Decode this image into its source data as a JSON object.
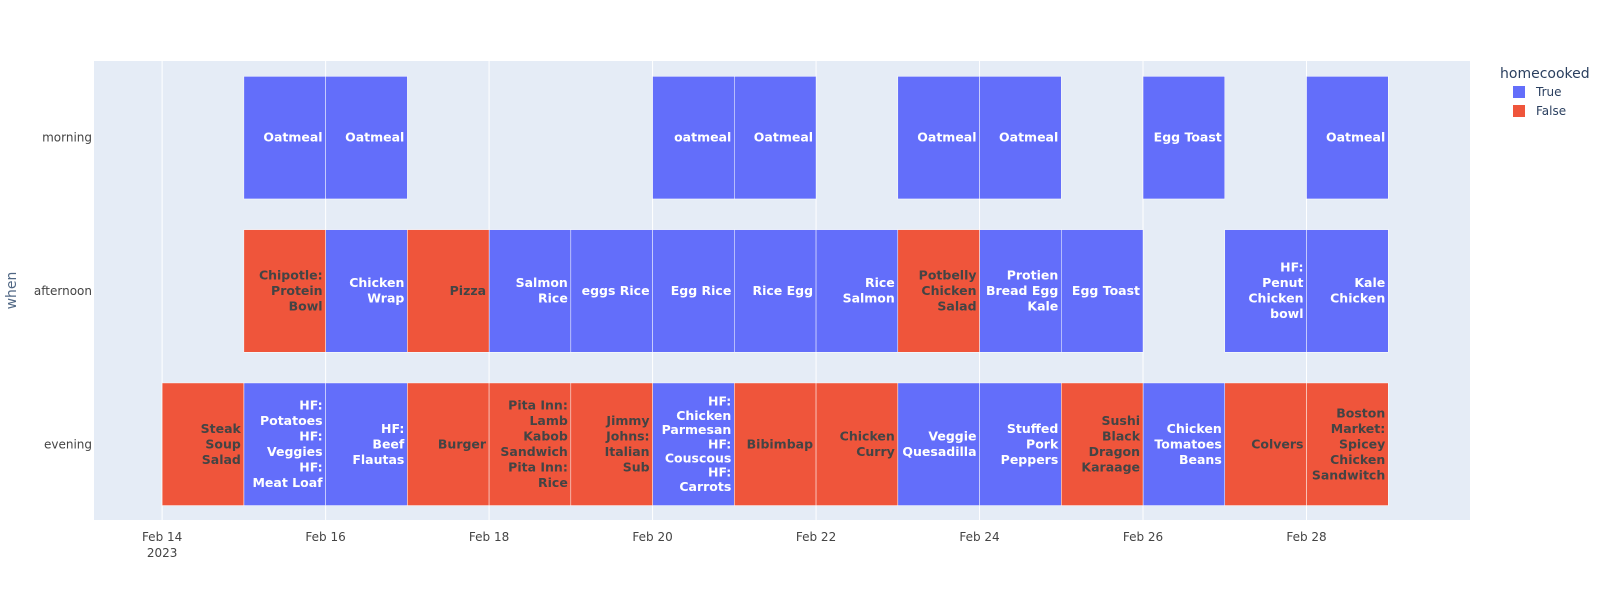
{
  "chart_data": {
    "type": "timeline",
    "title": "",
    "xlabel": "",
    "ylabel": "when",
    "categories": [
      "morning",
      "afternoon",
      "evening"
    ],
    "x_range": [
      "2023-02-13T04:00",
      "2023-03-02T00:00"
    ],
    "x_ticks": [
      {
        "date": "2023-02-14",
        "label": "Feb 14",
        "sublabel": "2023"
      },
      {
        "date": "2023-02-16",
        "label": "Feb 16",
        "sublabel": ""
      },
      {
        "date": "2023-02-18",
        "label": "Feb 18",
        "sublabel": ""
      },
      {
        "date": "2023-02-20",
        "label": "Feb 20",
        "sublabel": ""
      },
      {
        "date": "2023-02-22",
        "label": "Feb 22",
        "sublabel": ""
      },
      {
        "date": "2023-02-24",
        "label": "Feb 24",
        "sublabel": ""
      },
      {
        "date": "2023-02-26",
        "label": "Feb 26",
        "sublabel": ""
      },
      {
        "date": "2023-02-28",
        "label": "Feb 28",
        "sublabel": ""
      }
    ],
    "legend": {
      "title": "homecooked",
      "position": "top-right",
      "entries": [
        {
          "label": "True",
          "color": "#636efa"
        },
        {
          "label": "False",
          "color": "#ef553b"
        }
      ]
    },
    "colors": {
      "True": "#636efa",
      "False": "#ef553b",
      "plot_bg": "#e5ecf6",
      "grid": "#ffffff"
    },
    "series": [
      {
        "name": "True",
        "points": [
          {
            "start": "2023-02-15",
            "end": "2023-02-16",
            "when": "morning",
            "label": "Oatmeal"
          },
          {
            "start": "2023-02-16",
            "end": "2023-02-17",
            "when": "morning",
            "label": "Oatmeal"
          },
          {
            "start": "2023-02-20",
            "end": "2023-02-21",
            "when": "morning",
            "label": "oatmeal"
          },
          {
            "start": "2023-02-21",
            "end": "2023-02-22",
            "when": "morning",
            "label": "Oatmeal"
          },
          {
            "start": "2023-02-23",
            "end": "2023-02-24",
            "when": "morning",
            "label": "Oatmeal"
          },
          {
            "start": "2023-02-24",
            "end": "2023-02-25",
            "when": "morning",
            "label": "Oatmeal"
          },
          {
            "start": "2023-02-26",
            "end": "2023-02-27",
            "when": "morning",
            "label": "Egg Toast"
          },
          {
            "start": "2023-02-28",
            "end": "2023-03-01",
            "when": "morning",
            "label": "Oatmeal"
          },
          {
            "start": "2023-02-16",
            "end": "2023-02-17",
            "when": "afternoon",
            "label": "Chicken Wrap"
          },
          {
            "start": "2023-02-18",
            "end": "2023-02-19",
            "when": "afternoon",
            "label": "Salmon Rice"
          },
          {
            "start": "2023-02-19",
            "end": "2023-02-20",
            "when": "afternoon",
            "label": "eggs Rice"
          },
          {
            "start": "2023-02-20",
            "end": "2023-02-21",
            "when": "afternoon",
            "label": "Egg Rice"
          },
          {
            "start": "2023-02-21",
            "end": "2023-02-22",
            "when": "afternoon",
            "label": "Rice Egg"
          },
          {
            "start": "2023-02-22",
            "end": "2023-02-23",
            "when": "afternoon",
            "label": "Rice Salmon"
          },
          {
            "start": "2023-02-24",
            "end": "2023-02-25",
            "when": "afternoon",
            "label": "Protien Bread Egg Kale"
          },
          {
            "start": "2023-02-25",
            "end": "2023-02-26",
            "when": "afternoon",
            "label": "Egg Toast"
          },
          {
            "start": "2023-02-27",
            "end": "2023-02-28",
            "when": "afternoon",
            "label": "HF: Penut Chicken bowl"
          },
          {
            "start": "2023-02-28",
            "end": "2023-03-01",
            "when": "afternoon",
            "label": "Kale Chicken"
          },
          {
            "start": "2023-02-15",
            "end": "2023-02-16",
            "when": "evening",
            "label": "HF: Potatoes HF: Veggies HF: Meat Loaf"
          },
          {
            "start": "2023-02-16",
            "end": "2023-02-17",
            "when": "evening",
            "label": "HF: Beef Flautas"
          },
          {
            "start": "2023-02-20",
            "end": "2023-02-21",
            "when": "evening",
            "label": "HF: Chicken Parmesan HF: Couscous HF: Carrots"
          },
          {
            "start": "2023-02-23",
            "end": "2023-02-24",
            "when": "evening",
            "label": "Veggie Quesadilla"
          },
          {
            "start": "2023-02-24",
            "end": "2023-02-25",
            "when": "evening",
            "label": "Stuffed Pork Peppers"
          },
          {
            "start": "2023-02-26",
            "end": "2023-02-27",
            "when": "evening",
            "label": "Chicken Tomatoes Beans"
          }
        ]
      },
      {
        "name": "False",
        "points": [
          {
            "start": "2023-02-15",
            "end": "2023-02-16",
            "when": "afternoon",
            "label": "Chipotle: Protein Bowl"
          },
          {
            "start": "2023-02-17",
            "end": "2023-02-18",
            "when": "afternoon",
            "label": "Pizza"
          },
          {
            "start": "2023-02-23",
            "end": "2023-02-24",
            "when": "afternoon",
            "label": "Potbelly Chicken Salad"
          },
          {
            "start": "2023-02-14",
            "end": "2023-02-15",
            "when": "evening",
            "label": "Steak Soup Salad"
          },
          {
            "start": "2023-02-17",
            "end": "2023-02-18",
            "when": "evening",
            "label": "Burger"
          },
          {
            "start": "2023-02-18",
            "end": "2023-02-19",
            "when": "evening",
            "label": "Pita Inn: Lamb Kabob Sandwich Pita Inn: Rice"
          },
          {
            "start": "2023-02-19",
            "end": "2023-02-20",
            "when": "evening",
            "label": "Jimmy Johns: Italian Sub"
          },
          {
            "start": "2023-02-21",
            "end": "2023-02-22",
            "when": "evening",
            "label": "Bibimbap"
          },
          {
            "start": "2023-02-22",
            "end": "2023-02-23",
            "when": "evening",
            "label": "Chicken Curry"
          },
          {
            "start": "2023-02-25",
            "end": "2023-02-26",
            "when": "evening",
            "label": "Sushi Black Dragon Karaage"
          },
          {
            "start": "2023-02-27",
            "end": "2023-02-28",
            "when": "evening",
            "label": "Colvers"
          },
          {
            "start": "2023-02-28",
            "end": "2023-03-01",
            "when": "evening",
            "label": "Boston Market: Spicey Chicken Sandwitch"
          }
        ]
      }
    ]
  }
}
